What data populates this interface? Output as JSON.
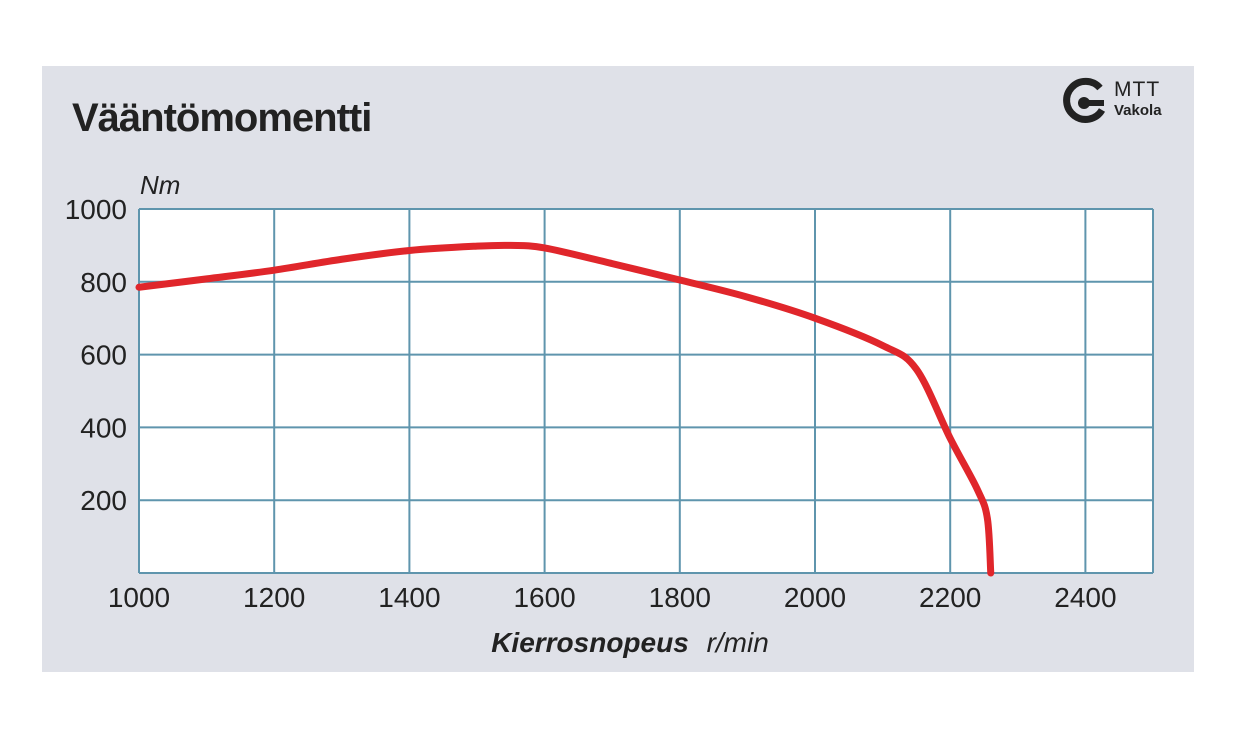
{
  "chart_data": {
    "type": "line",
    "title": "Vääntömomentti",
    "xlabel": "Kierrosnopeus",
    "xunit": "r/min",
    "ylabel": "Nm",
    "xlim": [
      1000,
      2500
    ],
    "ylim": [
      0,
      1000
    ],
    "xticks": [
      1000,
      1200,
      1400,
      1600,
      1800,
      2000,
      2200,
      2400
    ],
    "yticks": [
      200,
      400,
      600,
      800,
      1000
    ],
    "grid": true,
    "series": [
      {
        "color": "#e0262b",
        "x": [
          1000,
          1100,
          1200,
          1300,
          1400,
          1500,
          1550,
          1600,
          1700,
          1800,
          1900,
          2000,
          2100,
          2150,
          2200,
          2240,
          2255,
          2260
        ],
        "y": [
          785,
          808,
          832,
          862,
          886,
          898,
          900,
          893,
          850,
          805,
          758,
          700,
          625,
          560,
          370,
          230,
          150,
          0
        ]
      }
    ]
  },
  "logo": {
    "line1": "MTT",
    "line2": "Vakola"
  }
}
